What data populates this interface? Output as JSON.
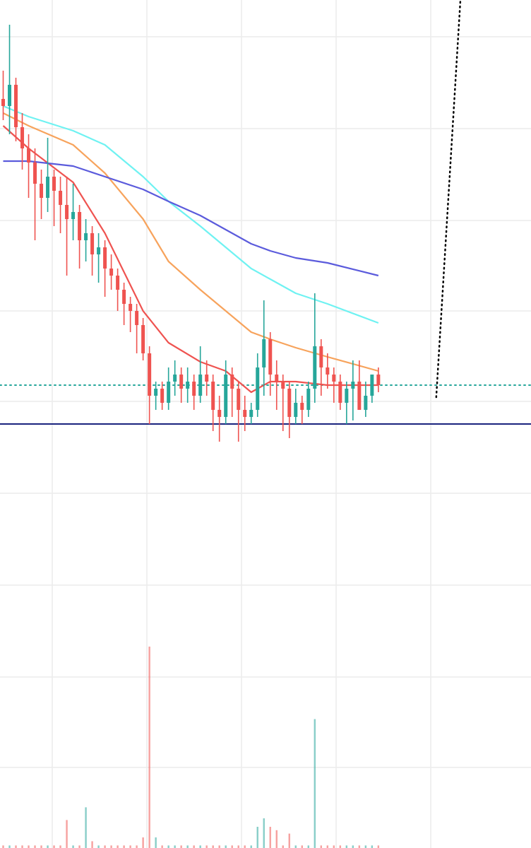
{
  "chart_data": {
    "type": "candlestick",
    "x": [
      0,
      1,
      2,
      3,
      4,
      5,
      6,
      7,
      8,
      9,
      10,
      11,
      12,
      13,
      14,
      15,
      16,
      17,
      18,
      19,
      20,
      21,
      22,
      23,
      24,
      25,
      26,
      27,
      28,
      29,
      30,
      31,
      32,
      33,
      34,
      35,
      36,
      37,
      38,
      39,
      40,
      41,
      42,
      43,
      44,
      45,
      46,
      47,
      48,
      49,
      50,
      51,
      52,
      53,
      54,
      55,
      56,
      57,
      58,
      59
    ],
    "open": [
      106,
      105,
      108,
      102,
      99,
      97,
      94,
      92,
      95,
      93,
      91,
      89,
      90,
      86,
      87,
      84,
      85,
      82,
      81,
      79,
      77,
      76,
      74,
      70,
      64,
      65,
      63,
      66,
      67,
      65,
      66,
      64,
      67,
      66,
      62,
      61,
      67,
      65,
      62,
      61,
      62,
      68,
      72,
      67,
      66,
      65,
      61,
      63,
      62,
      65,
      71,
      68,
      67,
      66,
      63,
      65,
      66,
      62,
      64,
      67
    ],
    "high": [
      110,
      116.5,
      109,
      104,
      101,
      99,
      96,
      100.5,
      96,
      95,
      95,
      94,
      91,
      89,
      88,
      87,
      86,
      84,
      82,
      80,
      78,
      77,
      75,
      71,
      66,
      66,
      68,
      69,
      68,
      68,
      67,
      71,
      69,
      67,
      64,
      69,
      68,
      66,
      64,
      63,
      70,
      77.5,
      73,
      69,
      67,
      66,
      65,
      64,
      66,
      78.5,
      72,
      70,
      68,
      67,
      66,
      69,
      69,
      66,
      67,
      68
    ],
    "low": [
      103,
      101,
      100,
      96,
      92,
      86,
      89,
      90,
      88,
      87,
      81,
      86,
      82,
      83,
      81,
      80,
      78,
      79,
      76,
      74,
      73,
      70,
      69,
      60,
      62,
      62,
      62,
      64,
      63,
      63,
      62,
      63,
      64,
      59,
      57.5,
      60,
      61,
      57.5,
      59,
      60,
      61,
      64,
      64,
      62,
      59,
      58,
      60,
      60,
      61,
      63,
      64,
      65,
      63,
      62,
      60,
      60.5,
      62,
      61,
      63,
      64.5
    ],
    "close": [
      105,
      108,
      102,
      99,
      97,
      94,
      92,
      95,
      93,
      91,
      89,
      90,
      86,
      87,
      84,
      85,
      82,
      81,
      79,
      77,
      76,
      74,
      70,
      64,
      65,
      63,
      66,
      67,
      65,
      66,
      64,
      67,
      66,
      62,
      61,
      67,
      65,
      62,
      61,
      62,
      68,
      72,
      67,
      66,
      65,
      61,
      63,
      62,
      65,
      71,
      68,
      67,
      66,
      63,
      65,
      66,
      62,
      64,
      67,
      65.5
    ],
    "up_color": "#26a69a",
    "down_color": "#ef5350",
    "volume": {
      "values": [
        0.3,
        0.3,
        0.3,
        0.3,
        0.3,
        0.3,
        0.3,
        0.3,
        0.3,
        0.3,
        3.3,
        0.3,
        0.3,
        4.8,
        0.8,
        0.3,
        0.3,
        0.3,
        0.3,
        0.3,
        0.3,
        0.3,
        1.25,
        23.75,
        1.25,
        0.3,
        0.3,
        0.3,
        0.3,
        0.3,
        0.3,
        0.3,
        0.3,
        0.3,
        0.3,
        0.3,
        0.3,
        0.3,
        0.3,
        0.3,
        2.5,
        3.5,
        2.5,
        2.1,
        0.3,
        1.7,
        0.3,
        0.3,
        0.3,
        15.2,
        0.3,
        0.3,
        0.3,
        0.3,
        0.3,
        0.3,
        0.3,
        0.3,
        0.3,
        0.3
      ],
      "axis": "y2",
      "up_color": "rgba(38,166,154,0.55)",
      "down_color": "rgba(239,83,80,0.55)"
    },
    "series": [
      {
        "color": "#ef5350",
        "x": [
          0,
          4,
          11,
          16,
          22,
          26,
          31,
          35,
          39,
          42,
          46,
          51,
          59
        ],
        "values": [
          102.2,
          99,
          94.2,
          87,
          76,
          71.5,
          68.8,
          67.5,
          64.5,
          66,
          66,
          65.5,
          65.5
        ]
      },
      {
        "color": "#f7a35c",
        "x": [
          0,
          4,
          11,
          16,
          22,
          26,
          31,
          35,
          39,
          42,
          46,
          51,
          59
        ],
        "values": [
          104,
          102.2,
          99.5,
          95.5,
          89,
          83,
          79,
          76,
          73,
          72,
          70.8,
          69.5,
          67.5
        ]
      },
      {
        "color": "#6ff2f2",
        "x": [
          0,
          4,
          11,
          16,
          22,
          26,
          31,
          35,
          39,
          42,
          46,
          51,
          59
        ],
        "values": [
          105,
          103.5,
          101.5,
          99.5,
          95,
          91.5,
          88,
          85,
          82,
          80.5,
          78.5,
          77,
          74.3
        ]
      },
      {
        "color": "#5b5bdc",
        "x": [
          0,
          4,
          11,
          16,
          22,
          26,
          31,
          35,
          39,
          42,
          46,
          51,
          59
        ],
        "values": [
          97.2,
          97.2,
          96.5,
          95,
          93.2,
          91.5,
          89.5,
          87.5,
          85.5,
          84.5,
          83.5,
          82.8,
          81
        ]
      }
    ],
    "hlines": [
      {
        "value": 65.5,
        "color": "#26a69a",
        "style": "dotted"
      },
      {
        "value": 60,
        "color": "#1a237e",
        "style": "solid"
      }
    ],
    "trend_line": {
      "x": [
        68.1,
        71.9
      ],
      "y": [
        63.8,
        120
      ],
      "color": "#000000"
    },
    "xlim": [
      -0.5,
      83
    ],
    "ylim": [
      0,
      120
    ],
    "y2lim": [
      0,
      100
    ]
  }
}
